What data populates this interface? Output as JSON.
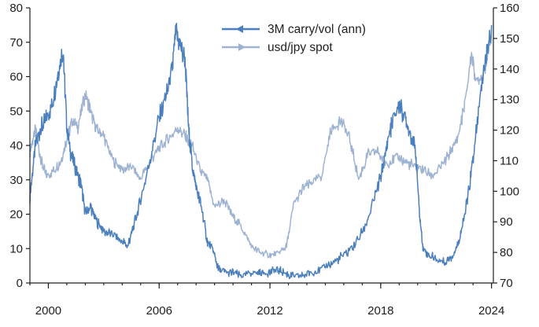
{
  "chart_data": {
    "type": "line",
    "title": "",
    "xlabel": "",
    "ylabel_left": "",
    "ylabel_right": "",
    "xlim": [
      1999.0,
      2024.1
    ],
    "ylim_left": [
      0,
      80
    ],
    "ylim_right": [
      70,
      160
    ],
    "x_ticks": [
      2000,
      2006,
      2012,
      2018,
      2024
    ],
    "x_tick_labels": [
      "2000",
      "2006",
      "2012",
      "2018",
      "2024"
    ],
    "y_left_ticks": [
      0,
      10,
      20,
      30,
      40,
      50,
      60,
      70,
      80
    ],
    "y_left_tick_labels": [
      "0",
      "10",
      "20",
      "30",
      "40",
      "50",
      "60",
      "70",
      "80"
    ],
    "y_right_ticks": [
      70,
      80,
      90,
      100,
      110,
      120,
      130,
      140,
      150,
      160
    ],
    "y_right_tick_labels": [
      "70",
      "80",
      "90",
      "100",
      "110",
      "120",
      "130",
      "140",
      "150",
      "160"
    ],
    "grid": false,
    "legend": {
      "position": "top-center"
    },
    "series": [
      {
        "name": "3M carry/vol (ann)",
        "axis": "left",
        "color": "#4a7fbd",
        "x": [
          1999.0,
          1999.3,
          1999.6,
          1999.9,
          2000.2,
          2000.5,
          2000.8,
          2001.0,
          2001.2,
          2001.5,
          2001.8,
          2002.0,
          2002.3,
          2002.6,
          2003.0,
          2003.5,
          2004.0,
          2004.3,
          2004.6,
          2005.0,
          2005.5,
          2006.0,
          2006.4,
          2006.7,
          2006.9,
          2007.1,
          2007.4,
          2007.6,
          2007.8,
          2008.0,
          2008.3,
          2008.6,
          2008.9,
          2009.2,
          2009.6,
          2010.0,
          2010.5,
          2011.0,
          2011.5,
          2012.0,
          2012.4,
          2012.8,
          2013.2,
          2013.7,
          2014.2,
          2014.8,
          2015.4,
          2016.0,
          2016.6,
          2017.2,
          2017.7,
          2018.1,
          2018.4,
          2018.7,
          2019.0,
          2019.3,
          2019.6,
          2019.9,
          2020.1,
          2020.3,
          2020.6,
          2021.0,
          2021.5,
          2021.9,
          2022.2,
          2022.5,
          2022.8,
          2023.1,
          2023.4,
          2023.7,
          2024.0
        ],
        "values": [
          25,
          40,
          45,
          48,
          52,
          60,
          68,
          45,
          38,
          33,
          28,
          20,
          22,
          18,
          15,
          14,
          12,
          11,
          16,
          24,
          36,
          48,
          55,
          62,
          73,
          70,
          65,
          45,
          34,
          28,
          22,
          12,
          10,
          4,
          3,
          3,
          2,
          3,
          3,
          3,
          4,
          3,
          2,
          2,
          3,
          4,
          6,
          8,
          11,
          17,
          25,
          33,
          42,
          48,
          52,
          48,
          44,
          38,
          20,
          10,
          8,
          7,
          6,
          8,
          12,
          18,
          28,
          40,
          55,
          66,
          75
        ]
      },
      {
        "name": "usd/jpy spot",
        "axis": "right",
        "color": "#9db3d1",
        "x": [
          1999.0,
          1999.3,
          1999.6,
          1999.9,
          2000.3,
          2000.7,
          2001.0,
          2001.3,
          2001.6,
          2002.0,
          2002.3,
          2002.6,
          2003.0,
          2003.5,
          2004.0,
          2004.5,
          2005.0,
          2005.5,
          2006.0,
          2006.5,
          2007.0,
          2007.4,
          2007.8,
          2008.2,
          2008.6,
          2009.0,
          2009.5,
          2010.0,
          2010.5,
          2011.0,
          2011.5,
          2012.0,
          2012.5,
          2012.9,
          2013.3,
          2013.8,
          2014.3,
          2014.8,
          2015.3,
          2015.8,
          2016.3,
          2016.8,
          2017.3,
          2017.8,
          2018.3,
          2018.8,
          2019.3,
          2019.8,
          2020.3,
          2020.8,
          2021.3,
          2021.8,
          2022.2,
          2022.6,
          2022.9,
          2023.2,
          2023.6,
          2024.0
        ],
        "values": [
          113,
          120,
          110,
          105,
          107,
          110,
          117,
          123,
          121,
          132,
          126,
          120,
          118,
          110,
          107,
          108,
          104,
          110,
          114,
          117,
          121,
          118,
          115,
          107,
          104,
          95,
          97,
          92,
          88,
          82,
          80,
          79,
          80,
          82,
          96,
          101,
          103,
          105,
          120,
          123,
          118,
          104,
          112,
          113,
          109,
          111,
          110,
          108,
          107,
          105,
          108,
          113,
          118,
          130,
          145,
          135,
          140,
          150
        ]
      }
    ]
  }
}
